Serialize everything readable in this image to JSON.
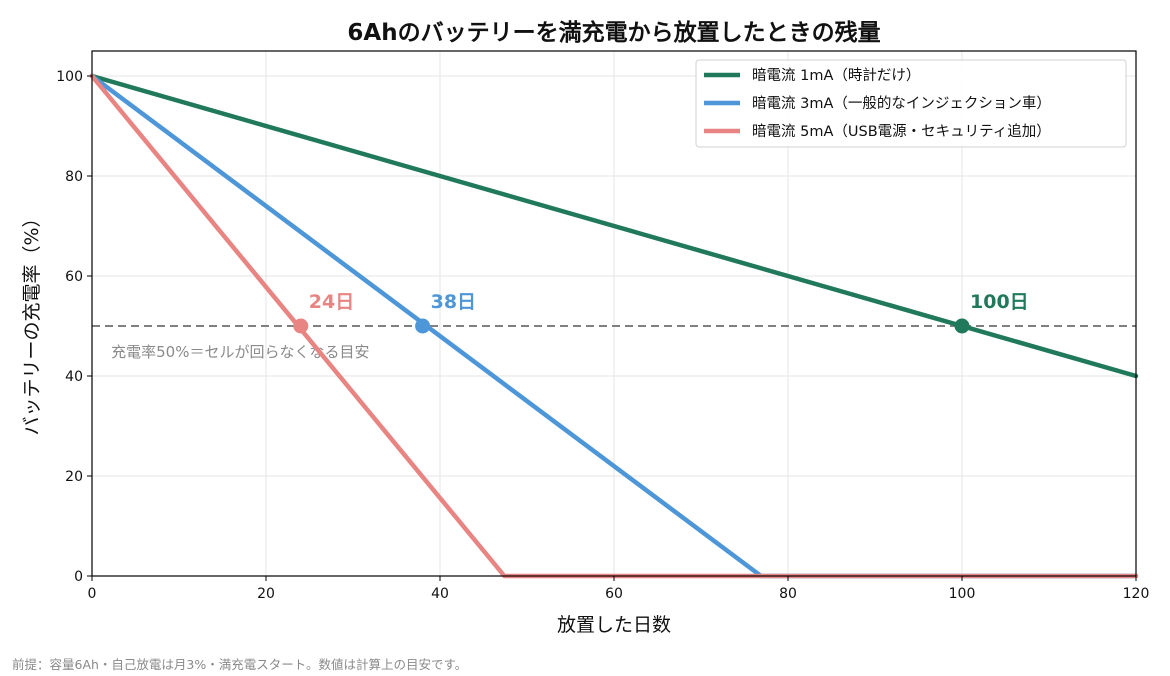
{
  "chart_data": {
    "type": "line",
    "title": "6Ahのバッテリーを満充電から放置したときの残量",
    "xlabel": "放置した日数",
    "ylabel": "バッテリーの充電率（%）",
    "xlim": [
      0,
      120
    ],
    "ylim": [
      0,
      105
    ],
    "xticks": [
      0,
      20,
      40,
      60,
      80,
      100,
      120
    ],
    "yticks": [
      0,
      20,
      40,
      60,
      80,
      100
    ],
    "grid": true,
    "legend_position": "top-right",
    "series": [
      {
        "name": "暗電流 1mA（時計だけ）",
        "color": "#21795c",
        "x": [
          0,
          120
        ],
        "y": [
          100,
          40
        ],
        "marker": {
          "x": 100,
          "y": 50,
          "label": "100日"
        }
      },
      {
        "name": "暗電流 3mA（一般的なインジェクション車）",
        "color": "#4d96d8",
        "x": [
          0,
          76.9,
          120
        ],
        "y": [
          100,
          0,
          0
        ],
        "marker": {
          "x": 38,
          "y": 50,
          "label": "38日"
        }
      },
      {
        "name": "暗電流 5mA（USB電源・セキュリティ追加）",
        "color": "#e88582",
        "x": [
          0,
          47.4,
          120
        ],
        "y": [
          100,
          0,
          0
        ],
        "marker": {
          "x": 24,
          "y": 50,
          "label": "24日"
        }
      }
    ],
    "reference_line": {
      "y": 50,
      "color": "#808080",
      "label": "充電率50%＝セルが回らなくなる目安"
    }
  },
  "footnote": "前提：容量6Ah・自己放電は月3%・満充電スタート。数値は計算上の目安です。"
}
